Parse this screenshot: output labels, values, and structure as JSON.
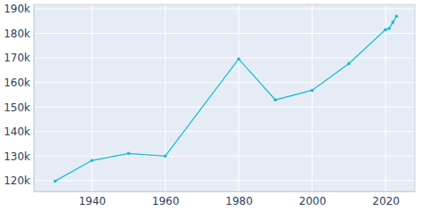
{
  "chart_data": {
    "type": "line",
    "x": [
      1930,
      1940,
      1950,
      1960,
      1980,
      1990,
      2000,
      2010,
      2020,
      2021,
      2022,
      2023
    ],
    "values": [
      119800,
      128200,
      131100,
      130000,
      169600,
      152900,
      156800,
      167700,
      181500,
      182000,
      184500,
      187000
    ],
    "color": "#17becf",
    "marker": "circle",
    "xlim": [
      1924.2,
      2028
    ],
    "xticks": [
      1940,
      1960,
      1980,
      2000,
      2020
    ],
    "ylim": [
      115600,
      191800
    ],
    "yticks": [
      {
        "value": 120000,
        "label": "120k"
      },
      {
        "value": 130000,
        "label": "130k"
      },
      {
        "value": 140000,
        "label": "140k"
      },
      {
        "value": 150000,
        "label": "150k"
      },
      {
        "value": 160000,
        "label": "160k"
      },
      {
        "value": 170000,
        "label": "170k"
      },
      {
        "value": 180000,
        "label": "180k"
      },
      {
        "value": 190000,
        "label": "190k"
      }
    ],
    "grid": true
  }
}
